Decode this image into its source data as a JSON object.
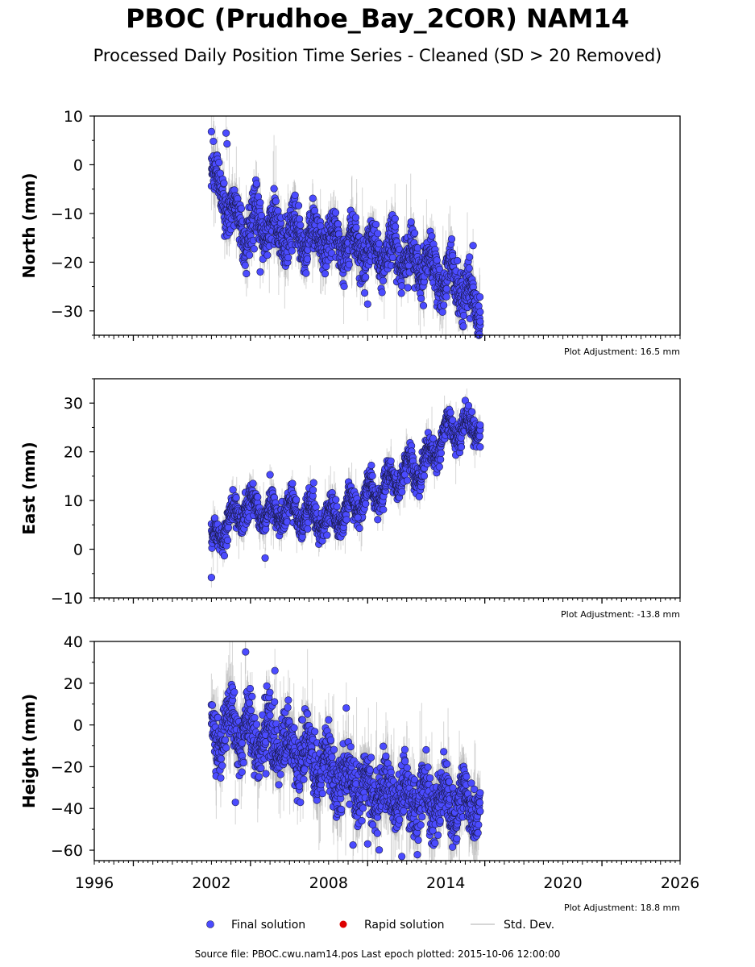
{
  "header": {
    "title": "PBOC (Prudhoe_Bay_2COR) NAM14",
    "subtitle": "Processed Daily Position Time Series - Cleaned (SD > 20 Removed)"
  },
  "footer": {
    "source": "Source file: PBOC.cwu.nam14.pos  Last epoch plotted: 2015-10-06 12:00:00"
  },
  "legend": {
    "placement": "bottom-center",
    "items": [
      {
        "label": "Final solution",
        "color": "#4b4bff"
      },
      {
        "label": "Rapid solution",
        "color": "#dd0000"
      },
      {
        "label": "Std. Dev.",
        "color": "#c8c8c8"
      }
    ]
  },
  "colors": {
    "final": "#4b4bff",
    "marker_edge": "#1a1a4a",
    "std_dev": "#b4b4b4",
    "axis": "#000000"
  },
  "chart_data": [
    {
      "type": "scatter",
      "component": "north",
      "ylabel": "North (mm)",
      "adjustment": "Plot Adjustment: 16.5 mm",
      "xlim": [
        1996,
        2026
      ],
      "ylim": [
        -35,
        10
      ],
      "yticks": [
        -30,
        -20,
        -10,
        0,
        10
      ],
      "grid": false,
      "data_span": [
        2002.0,
        2015.76
      ],
      "trend": [
        [
          2002.0,
          -2
        ],
        [
          2002.5,
          -6
        ],
        [
          2003.0,
          -9
        ],
        [
          2003.6,
          -13
        ],
        [
          2004.5,
          -12
        ],
        [
          2005.5,
          -14
        ],
        [
          2006.5,
          -15
        ],
        [
          2007.5,
          -15
        ],
        [
          2008.5,
          -16
        ],
        [
          2009.5,
          -17
        ],
        [
          2010.5,
          -18
        ],
        [
          2011.5,
          -18
        ],
        [
          2012.5,
          -20
        ],
        [
          2013.5,
          -22
        ],
        [
          2014.5,
          -24
        ],
        [
          2015.3,
          -27
        ],
        [
          2015.76,
          -30
        ]
      ],
      "seasonal_amplitude": 3.0,
      "scatter_sd": 2.3,
      "highlights": [
        [
          2002.0,
          6.8
        ],
        [
          2002.1,
          4.8
        ],
        [
          2002.75,
          6.5
        ],
        [
          2002.8,
          4.3
        ],
        [
          2015.4,
          -16.6
        ],
        [
          2015.76,
          -30.2
        ],
        [
          2015.76,
          -32.2
        ],
        [
          2010.0,
          -28.6
        ],
        [
          2004.5,
          -22.0
        ]
      ]
    },
    {
      "type": "scatter",
      "component": "east",
      "ylabel": "East (mm)",
      "adjustment": "Plot Adjustment: -13.8 mm",
      "xlim": [
        1996,
        2026
      ],
      "ylim": [
        -10,
        35
      ],
      "yticks": [
        -10,
        0,
        10,
        20,
        30
      ],
      "grid": false,
      "data_span": [
        2002.0,
        2015.76
      ],
      "trend": [
        [
          2002.0,
          1
        ],
        [
          2002.5,
          4
        ],
        [
          2003.0,
          6
        ],
        [
          2004.0,
          9
        ],
        [
          2005.0,
          7
        ],
        [
          2006.0,
          8
        ],
        [
          2007.0,
          7
        ],
        [
          2008.0,
          6
        ],
        [
          2009.0,
          8
        ],
        [
          2010.0,
          11
        ],
        [
          2011.0,
          13
        ],
        [
          2012.0,
          16
        ],
        [
          2013.0,
          17
        ],
        [
          2013.5,
          21
        ],
        [
          2014.0,
          24
        ],
        [
          2015.0,
          25
        ],
        [
          2015.76,
          26
        ]
      ],
      "seasonal_amplitude": 2.5,
      "scatter_sd": 1.4,
      "highlights": [
        [
          2002.0,
          -5.8
        ],
        [
          2005.0,
          15.3
        ],
        [
          2015.76,
          25.5
        ],
        [
          2015.76,
          21.0
        ],
        [
          2004.75,
          -1.8
        ],
        [
          2009.5,
          6.5
        ]
      ]
    },
    {
      "type": "scatter",
      "component": "height",
      "ylabel": "Height (mm)",
      "adjustment": "Plot Adjustment: 18.8 mm",
      "xlim": [
        1996,
        2026
      ],
      "ylim": [
        -65,
        40
      ],
      "yticks": [
        -60,
        -40,
        -20,
        0,
        20,
        40
      ],
      "xticks": [
        1996,
        2002,
        2008,
        2014,
        2020,
        2026
      ],
      "grid": false,
      "data_span": [
        2002.0,
        2015.76
      ],
      "trend": [
        [
          2002.0,
          -5
        ],
        [
          2003.0,
          0
        ],
        [
          2004.0,
          -5
        ],
        [
          2005.0,
          -8
        ],
        [
          2006.0,
          -10
        ],
        [
          2007.0,
          -15
        ],
        [
          2008.0,
          -22
        ],
        [
          2009.0,
          -27
        ],
        [
          2010.0,
          -30
        ],
        [
          2011.0,
          -33
        ],
        [
          2012.0,
          -35
        ],
        [
          2013.0,
          -36
        ],
        [
          2014.0,
          -37
        ],
        [
          2015.0,
          -38
        ],
        [
          2015.76,
          -38
        ]
      ],
      "seasonal_amplitude": 8,
      "scatter_sd": 7,
      "highlights": [
        [
          2003.75,
          35.0
        ],
        [
          2005.25,
          26.0
        ],
        [
          2015.76,
          -32.5
        ],
        [
          2009.25,
          -57.5
        ],
        [
          2010.0,
          -57.0
        ],
        [
          2011.75,
          -63.0
        ]
      ]
    }
  ]
}
